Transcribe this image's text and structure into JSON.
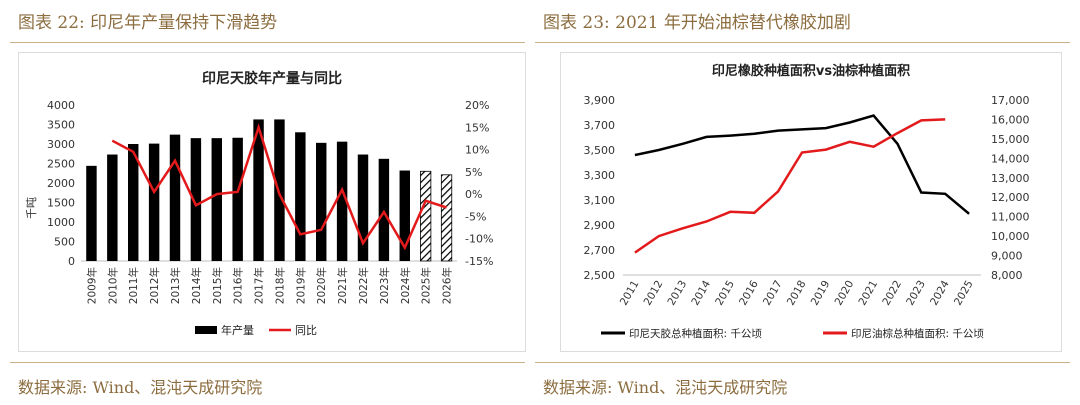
{
  "left": {
    "caption": "图表 22: 印尼年产量保持下滑趋势",
    "source": "数据来源: Wind、混沌天成研究院"
  },
  "right": {
    "caption": "图表 23: 2021 年开始油棕替代橡胶加剧",
    "source": "数据来源: Wind、混沌天成研究院"
  },
  "colors": {
    "bar": "#000000",
    "line_red": "#e31a1c",
    "line_black": "#000000",
    "accent": "#8c6d3f"
  },
  "chart_data": [
    {
      "type": "bar",
      "title": "印尼天胶年产量与同比",
      "ylabel": "千吨",
      "categories": [
        "2009年",
        "2010年",
        "2011年",
        "2012年",
        "2013年",
        "2014年",
        "2015年",
        "2016年",
        "2017年",
        "2018年",
        "2019年",
        "2020年",
        "2021年",
        "2022年",
        "2023年",
        "2024年",
        "2025年",
        "2026年"
      ],
      "y_ticks": [
        "0",
        "500",
        "1000",
        "1500",
        "2000",
        "2500",
        "3000",
        "3500",
        "4000"
      ],
      "y2_ticks": [
        "-15%",
        "-10%",
        "-5%",
        "0%",
        "5%",
        "10%",
        "15%",
        "20%"
      ],
      "ylim": [
        0,
        4000
      ],
      "y2lim": [
        -15,
        20
      ],
      "series": [
        {
          "name": "年产量",
          "axis": "left",
          "type": "bar",
          "values": [
            2440,
            2730,
            3000,
            3010,
            3240,
            3150,
            3150,
            3160,
            3630,
            3630,
            3300,
            3030,
            3060,
            2730,
            2620,
            2320,
            2300,
            2210
          ],
          "hatched_from_index": 16
        },
        {
          "name": "同比",
          "axis": "right",
          "type": "line",
          "values": [
            null,
            12,
            9.5,
            0.5,
            7.5,
            -2.5,
            0,
            0.5,
            15,
            0,
            -9,
            -8,
            1,
            -11,
            -4,
            -12,
            -1.5,
            -3
          ]
        }
      ],
      "legend": "bottom"
    },
    {
      "type": "line",
      "title": "印尼橡胶种植面积vs油棕种植面积",
      "categories": [
        "2011",
        "2012",
        "2013",
        "2014",
        "2015",
        "2016",
        "2017",
        "2018",
        "2019",
        "2020",
        "2021",
        "2022",
        "2023",
        "2024",
        "2025"
      ],
      "y_ticks": [
        "2,500",
        "2,700",
        "2,900",
        "3,100",
        "3,300",
        "3,500",
        "3,700",
        "3,900"
      ],
      "y2_ticks": [
        "8,000",
        "9,000",
        "10,000",
        "11,000",
        "12,000",
        "13,000",
        "14,000",
        "15,000",
        "16,000",
        "17,000"
      ],
      "ylim": [
        2500,
        3900
      ],
      "y2lim": [
        8000,
        17000
      ],
      "series": [
        {
          "name": "印尼天胶总种植面积: 千公顷",
          "axis": "left",
          "values": [
            3460,
            3500,
            3550,
            3605,
            3615,
            3630,
            3655,
            3665,
            3675,
            3720,
            3775,
            3550,
            3160,
            3150,
            2990
          ]
        },
        {
          "name": "印尼油棕总种植面积: 千公顷",
          "axis": "right",
          "values": [
            9150,
            10000,
            10400,
            10750,
            11250,
            11200,
            12300,
            14300,
            14450,
            14850,
            14600,
            15300,
            15950,
            16000,
            null
          ]
        }
      ],
      "legend": "bottom"
    }
  ]
}
